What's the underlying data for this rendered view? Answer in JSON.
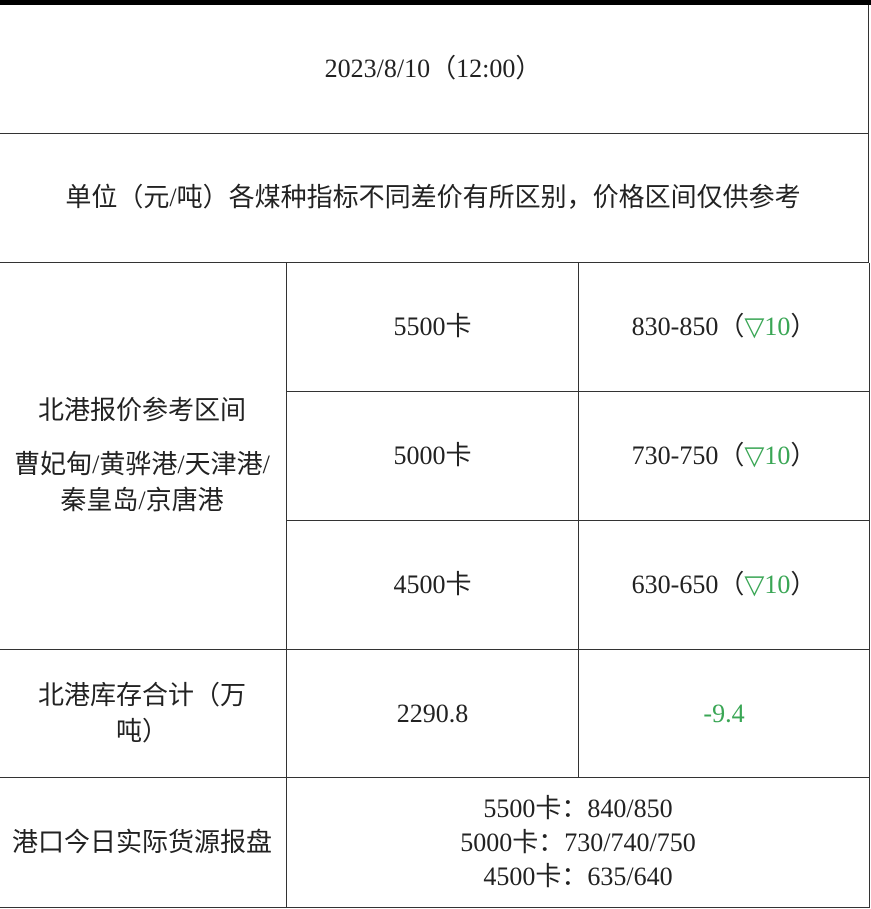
{
  "header": {
    "datetime": "2023/8/10（12:00）"
  },
  "note": "单位（元/吨）各煤种指标不同差价有所区别，价格区间仅供参考",
  "north_port": {
    "label_line1": "北港报价参考区间",
    "label_line2": "曹妃甸/黄骅港/天津港/秦皇岛/京唐港",
    "rows": [
      {
        "grade": "5500卡",
        "range": "830-850（",
        "change_icon": "down-triangle-icon",
        "change_symbol": "▽",
        "change": "10",
        "close": "）"
      },
      {
        "grade": "5000卡",
        "range": "730-750（",
        "change_icon": "down-triangle-icon",
        "change_symbol": "▽",
        "change": "10",
        "close": "）"
      },
      {
        "grade": "4500卡",
        "range": "630-650（",
        "change_icon": "down-triangle-icon",
        "change_symbol": "▽",
        "change": "10",
        "close": "）"
      }
    ]
  },
  "inventory": {
    "label": "北港库存合计（万吨）",
    "value": "2290.8",
    "change": "-9.4"
  },
  "actual": {
    "label": "港口今日实际货源报盘",
    "lines": [
      "5500卡：840/850",
      "5000卡：730/740/750",
      "4500卡：635/640"
    ]
  },
  "colors": {
    "decrease": "#3aa655",
    "border": "#333333"
  }
}
